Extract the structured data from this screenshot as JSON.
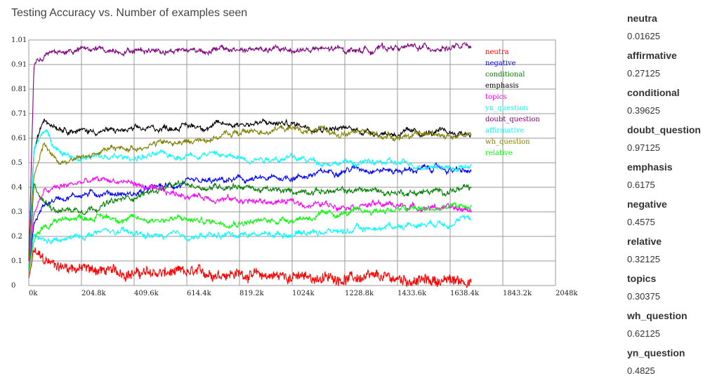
{
  "title": "Testing Accuracy vs. Number of examples seen",
  "chart_data": {
    "type": "line",
    "title": "Testing Accuracy vs. Number of examples seen",
    "xlabel": "",
    "ylabel": "",
    "xlim": [
      0,
      2048
    ],
    "ylim": [
      0,
      1.0
    ],
    "x_tick_labels": [
      "0k",
      "204.8k",
      "409.6k",
      "614.4k",
      "819.2k",
      "1024k",
      "1228.8k",
      "1433.6k",
      "1638.4k",
      "1843.2k",
      "2048k"
    ],
    "y_tick_labels": [
      "0",
      "0.1",
      "0.2",
      "0.3",
      "0.4",
      "0.5",
      "0.61",
      "0.71",
      "0.81",
      "0.91",
      "1.01"
    ],
    "grid": true,
    "legend_position": "top-right inside plot",
    "series": [
      {
        "name": "neutra",
        "color": "#ff0000",
        "x": [
          0,
          20,
          60,
          120,
          200,
          300,
          400,
          500,
          600,
          700,
          800,
          900,
          1000,
          1100,
          1200,
          1300,
          1400,
          1500,
          1600,
          1640,
          1720
        ],
        "values": [
          0.03,
          0.14,
          0.1,
          0.08,
          0.07,
          0.06,
          0.05,
          0.05,
          0.05,
          0.05,
          0.05,
          0.04,
          0.04,
          0.03,
          0.03,
          0.03,
          0.03,
          0.02,
          0.02,
          0.02,
          0.02
        ]
      },
      {
        "name": "negative",
        "color": "#0000ff",
        "x": [
          0,
          20,
          60,
          120,
          200,
          300,
          400,
          500,
          600,
          700,
          800,
          900,
          1000,
          1100,
          1200,
          1300,
          1400,
          1500,
          1600,
          1640,
          1720
        ],
        "values": [
          0.05,
          0.25,
          0.33,
          0.36,
          0.37,
          0.38,
          0.37,
          0.4,
          0.41,
          0.42,
          0.43,
          0.43,
          0.44,
          0.45,
          0.47,
          0.48,
          0.47,
          0.47,
          0.48,
          0.47,
          0.46
        ]
      },
      {
        "name": "conditional",
        "color": "#008000",
        "x": [
          0,
          20,
          60,
          120,
          200,
          300,
          400,
          500,
          600,
          700,
          800,
          900,
          1000,
          1100,
          1200,
          1300,
          1400,
          1500,
          1600,
          1640,
          1720
        ],
        "values": [
          0.05,
          0.4,
          0.34,
          0.31,
          0.31,
          0.33,
          0.36,
          0.39,
          0.41,
          0.4,
          0.41,
          0.39,
          0.38,
          0.39,
          0.38,
          0.39,
          0.38,
          0.38,
          0.38,
          0.39,
          0.39
        ]
      },
      {
        "name": "emphasis",
        "color": "#000000",
        "x": [
          0,
          20,
          60,
          120,
          200,
          300,
          400,
          500,
          600,
          700,
          800,
          900,
          1000,
          1100,
          1200,
          1300,
          1400,
          1500,
          1600,
          1640,
          1720
        ],
        "values": [
          0.1,
          0.55,
          0.68,
          0.65,
          0.63,
          0.63,
          0.63,
          0.64,
          0.65,
          0.65,
          0.66,
          0.66,
          0.66,
          0.65,
          0.64,
          0.63,
          0.62,
          0.62,
          0.62,
          0.62,
          0.62
        ]
      },
      {
        "name": "topics",
        "color": "#ff00ff",
        "x": [
          0,
          20,
          60,
          120,
          200,
          300,
          400,
          500,
          600,
          700,
          800,
          900,
          1000,
          1100,
          1200,
          1300,
          1400,
          1500,
          1600,
          1640,
          1720
        ],
        "values": [
          0.05,
          0.3,
          0.38,
          0.4,
          0.42,
          0.43,
          0.42,
          0.38,
          0.37,
          0.36,
          0.35,
          0.34,
          0.34,
          0.33,
          0.33,
          0.33,
          0.33,
          0.32,
          0.32,
          0.31,
          0.31
        ]
      },
      {
        "name": "yn_question",
        "color": "#00ffff",
        "x": [
          0,
          20,
          60,
          120,
          200,
          300,
          400,
          500,
          600,
          700,
          800,
          900,
          1000,
          1100,
          1200,
          1300,
          1400,
          1500,
          1600,
          1640,
          1720
        ],
        "values": [
          0.05,
          0.55,
          0.63,
          0.55,
          0.52,
          0.52,
          0.52,
          0.53,
          0.53,
          0.54,
          0.52,
          0.52,
          0.52,
          0.51,
          0.5,
          0.5,
          0.5,
          0.49,
          0.49,
          0.48,
          0.48
        ]
      },
      {
        "name": "doubt_question",
        "color": "#800080",
        "x": [
          0,
          20,
          60,
          120,
          200,
          300,
          400,
          500,
          600,
          700,
          800,
          900,
          1000,
          1100,
          1200,
          1300,
          1400,
          1500,
          1600,
          1640,
          1720
        ],
        "values": [
          0.1,
          0.9,
          0.94,
          0.95,
          0.96,
          0.96,
          0.96,
          0.96,
          0.96,
          0.96,
          0.96,
          0.96,
          0.96,
          0.96,
          0.96,
          0.96,
          0.97,
          0.97,
          0.97,
          0.97,
          0.97
        ]
      },
      {
        "name": "affirmative",
        "color": "#00ffff",
        "x": [
          0,
          20,
          60,
          120,
          200,
          300,
          400,
          500,
          600,
          700,
          800,
          900,
          1000,
          1100,
          1200,
          1300,
          1400,
          1500,
          1600,
          1640,
          1720
        ],
        "values": [
          0.05,
          0.2,
          0.18,
          0.18,
          0.2,
          0.22,
          0.21,
          0.2,
          0.2,
          0.2,
          0.21,
          0.21,
          0.21,
          0.22,
          0.22,
          0.23,
          0.24,
          0.25,
          0.26,
          0.26,
          0.27
        ]
      },
      {
        "name": "wh_question",
        "color": "#808000",
        "x": [
          0,
          20,
          60,
          120,
          200,
          300,
          400,
          500,
          600,
          700,
          800,
          900,
          1000,
          1100,
          1200,
          1300,
          1400,
          1500,
          1600,
          1640,
          1720
        ],
        "values": [
          0.05,
          0.45,
          0.58,
          0.5,
          0.52,
          0.55,
          0.56,
          0.58,
          0.58,
          0.6,
          0.62,
          0.63,
          0.64,
          0.63,
          0.62,
          0.62,
          0.61,
          0.61,
          0.62,
          0.61,
          0.62
        ]
      },
      {
        "name": "relative",
        "color": "#00ff00",
        "x": [
          0,
          20,
          60,
          120,
          200,
          300,
          400,
          500,
          600,
          700,
          800,
          900,
          1000,
          1100,
          1200,
          1300,
          1400,
          1500,
          1600,
          1640,
          1720
        ],
        "values": [
          0.05,
          0.18,
          0.24,
          0.27,
          0.28,
          0.28,
          0.27,
          0.27,
          0.27,
          0.26,
          0.26,
          0.26,
          0.27,
          0.28,
          0.29,
          0.3,
          0.31,
          0.31,
          0.31,
          0.32,
          0.32
        ]
      }
    ]
  },
  "side_panel": [
    {
      "name": "neutra",
      "value": "0.01625"
    },
    {
      "name": "affirmative",
      "value": "0.27125"
    },
    {
      "name": "conditional",
      "value": "0.39625"
    },
    {
      "name": "doubt_question",
      "value": "0.97125"
    },
    {
      "name": "emphasis",
      "value": "0.6175"
    },
    {
      "name": "negative",
      "value": "0.4575"
    },
    {
      "name": "relative",
      "value": "0.32125"
    },
    {
      "name": "topics",
      "value": "0.30375"
    },
    {
      "name": "wh_question",
      "value": "0.62125"
    },
    {
      "name": "yn_question",
      "value": "0.4825"
    }
  ]
}
